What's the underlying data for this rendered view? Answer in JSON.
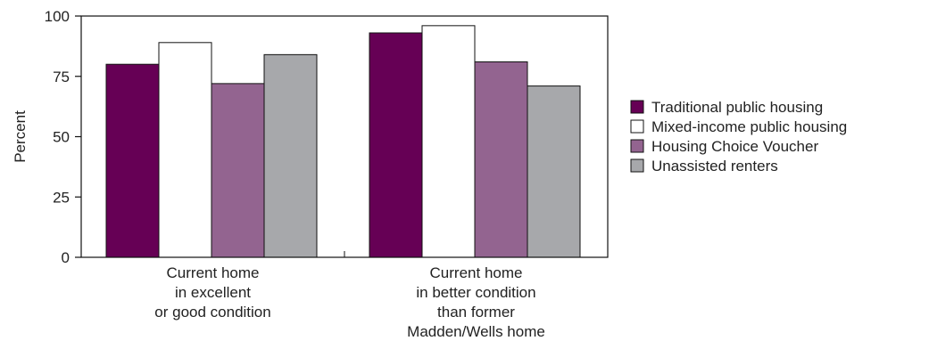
{
  "chart_data": {
    "type": "bar",
    "ylabel": "Percent",
    "ylim": [
      0,
      100
    ],
    "yticks": [
      0,
      25,
      50,
      75,
      100
    ],
    "categories": [
      [
        "Current home",
        "in excellent",
        "or good condition"
      ],
      [
        "Current home",
        "in better condition",
        "than former",
        "Madden/Wells home"
      ]
    ],
    "series": [
      {
        "name": "Traditional public housing",
        "color": "#660055",
        "values": [
          80,
          93
        ]
      },
      {
        "name": "Mixed-income public housing",
        "color": "#ffffff",
        "values": [
          89,
          96
        ]
      },
      {
        "name": "Housing Choice Voucher",
        "color": "#936490",
        "values": [
          72,
          81
        ]
      },
      {
        "name": "Unassisted renters",
        "color": "#a7a8ab",
        "values": [
          84,
          71
        ]
      }
    ],
    "legend_position": "right",
    "grid": false
  }
}
